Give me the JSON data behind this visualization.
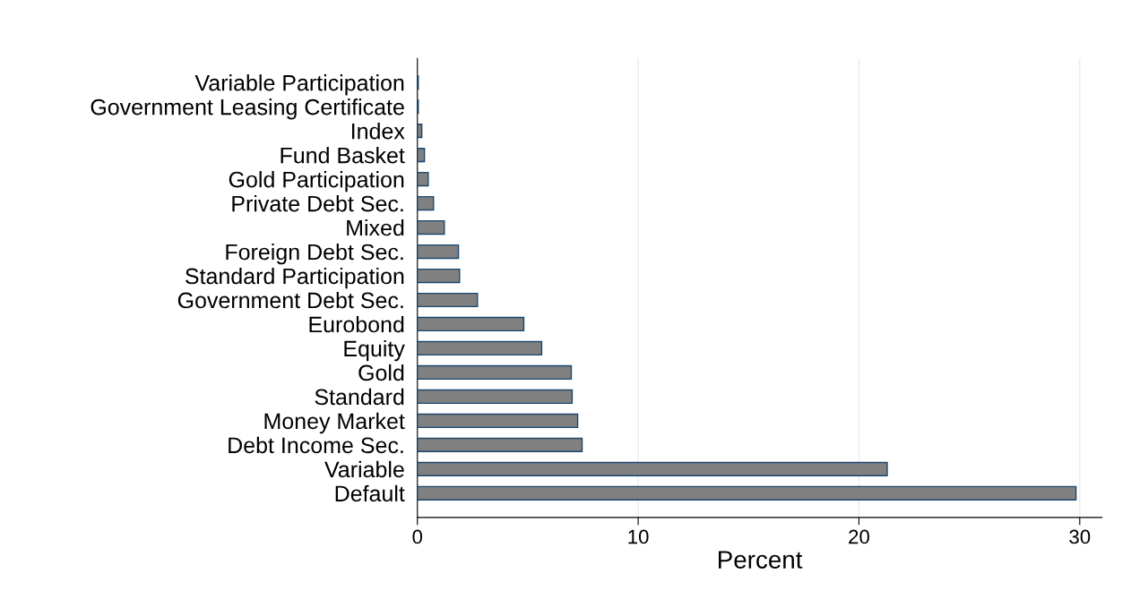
{
  "chart_data": {
    "type": "bar",
    "orientation": "horizontal",
    "xlabel": "Percent",
    "categories": [
      "Variable Participation",
      "Government Leasing Certificate",
      "Index",
      "Fund Basket",
      "Gold Participation",
      "Private Debt Sec.",
      "Mixed",
      "Foreign Debt Sec.",
      "Standard Participation",
      "Government Debt Sec.",
      "Eurobond",
      "Equity",
      "Gold",
      "Standard",
      "Money Market",
      "Debt Income Sec.",
      "Variable",
      "Default"
    ],
    "values": [
      0.04,
      0.04,
      0.2,
      0.32,
      0.49,
      0.73,
      1.22,
      1.86,
      1.91,
      2.72,
      4.82,
      5.63,
      6.97,
      7.01,
      7.26,
      7.46,
      21.28,
      29.83
    ],
    "color": "#808080",
    "xlim": [
      0,
      31
    ],
    "xticks": [
      0,
      10,
      20,
      30
    ],
    "grid": "x"
  }
}
